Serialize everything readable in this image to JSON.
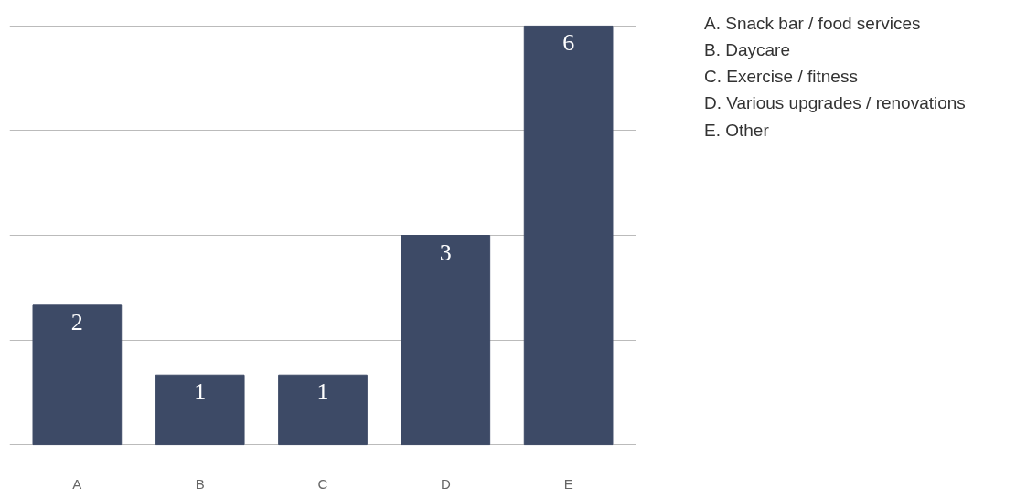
{
  "chart_data": {
    "type": "bar",
    "categories": [
      "A",
      "B",
      "C",
      "D",
      "E"
    ],
    "values": [
      2,
      1,
      1,
      3,
      6
    ],
    "color": "#3d4a66",
    "yticks": [
      {
        "value": 0,
        "label": null
      },
      {
        "value": 1.5,
        "label": null
      },
      {
        "value": 3,
        "label": null
      },
      {
        "value": 4.5,
        "label": null
      },
      {
        "value": 6,
        "label": null
      }
    ],
    "grid": "y",
    "tick_labels": "x",
    "data_labels": true,
    "legend": false,
    "annotations": [
      "A. Snack bar / food services",
      "B. Daycare",
      "C. Exercise / fitness",
      "D. Various upgrades / renovations",
      "E. Other"
    ]
  }
}
